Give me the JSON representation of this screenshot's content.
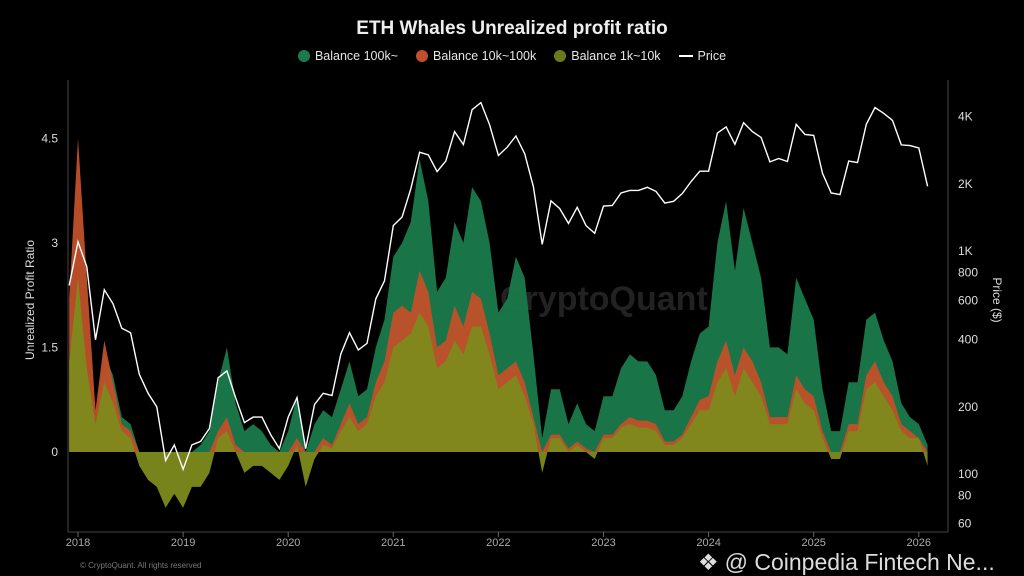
{
  "chart_data": {
    "type": "area",
    "title": "ETH Whales Unrealized profit ratio",
    "ylabel": "Unrealized Profit Ratio",
    "y2label": "Price ($)",
    "y2scale": "log",
    "ylim": [
      -1.12,
      5.34
    ],
    "y2lim": [
      60,
      5800
    ],
    "yticks": [
      "0",
      "1.5",
      "3",
      "4.5"
    ],
    "y2ticks": [
      "60",
      "80",
      "100",
      "200",
      "400",
      "600",
      "800",
      "1K",
      "2K",
      "4K"
    ],
    "xticks": [
      "2018",
      "2019",
      "2020",
      "2021",
      "2022",
      "2023",
      "2024",
      "2025",
      "2026"
    ],
    "legend_position": "top",
    "x_start": "2017-12",
    "x_end": "2026-02",
    "x_step": "month",
    "series": [
      {
        "name": "Balance 100k~",
        "color": "#1a7a4c",
        "values": [
          1.0,
          1.2,
          0.9,
          0.3,
          1.4,
          1.1,
          0.5,
          0.4,
          0,
          0,
          0,
          0,
          0,
          0,
          0,
          0.1,
          0.3,
          1.0,
          1.5,
          0.7,
          0.3,
          0.4,
          0.3,
          0.1,
          0,
          0.3,
          0.8,
          0,
          0.4,
          0.6,
          0.5,
          0.9,
          1.3,
          0.8,
          0.9,
          1.5,
          1.9,
          2.8,
          3.0,
          3.3,
          4.2,
          3.6,
          2.3,
          2.5,
          3.3,
          3.0,
          3.8,
          3.6,
          3.0,
          2.0,
          2.2,
          2.8,
          2.5,
          1.4,
          0.2,
          0.9,
          0.9,
          0.4,
          0.7,
          0.4,
          0.3,
          0.8,
          0.8,
          1.2,
          1.4,
          1.3,
          1.3,
          1.1,
          0.6,
          0.6,
          0.8,
          1.3,
          1.7,
          1.8,
          3.0,
          3.6,
          2.6,
          3.5,
          3.0,
          2.5,
          1.5,
          1.5,
          1.4,
          2.5,
          2.2,
          1.9,
          0.9,
          0.3,
          0.3,
          1.0,
          1.0,
          1.9,
          2.0,
          1.6,
          1.3,
          0.7,
          0.5,
          0.4,
          0.1
        ]
      },
      {
        "name": "Balance 10k~100k",
        "color": "#c0502a",
        "values": [
          2.2,
          4.5,
          2.5,
          0.6,
          1.6,
          1.0,
          0.4,
          0.3,
          0,
          0,
          0,
          0,
          0,
          0,
          0,
          0,
          0,
          0.3,
          0.5,
          0.1,
          0,
          0,
          0,
          0,
          0,
          0,
          0.2,
          0,
          0,
          0.2,
          0.1,
          0.4,
          0.7,
          0.4,
          0.5,
          1.0,
          1.3,
          2.0,
          2.1,
          2.0,
          2.6,
          2.3,
          1.5,
          1.6,
          2.1,
          1.8,
          2.3,
          2.2,
          1.7,
          1.1,
          1.2,
          1.3,
          1.0,
          0.5,
          0,
          0.25,
          0.25,
          0.05,
          0.15,
          0.05,
          0,
          0.25,
          0.25,
          0.4,
          0.5,
          0.45,
          0.45,
          0.4,
          0.15,
          0.15,
          0.25,
          0.5,
          0.75,
          0.8,
          1.3,
          1.6,
          1.1,
          1.5,
          1.3,
          1.0,
          0.5,
          0.5,
          0.5,
          1.1,
          0.9,
          0.8,
          0.3,
          0,
          0,
          0.4,
          0.4,
          1.1,
          1.3,
          1.0,
          0.8,
          0.4,
          0.3,
          0.2,
          0
        ]
      },
      {
        "name": "Balance 1k~10k",
        "color": "#7d8a1c",
        "values": [
          1.3,
          2.5,
          1.2,
          0.4,
          1.0,
          0.7,
          0.3,
          0.2,
          -0.2,
          -0.4,
          -0.5,
          -0.8,
          -0.6,
          -0.8,
          -0.5,
          -0.5,
          -0.3,
          0.2,
          0.3,
          0.0,
          -0.3,
          -0.2,
          -0.2,
          -0.3,
          -0.4,
          -0.2,
          0.1,
          -0.5,
          -0.1,
          0.1,
          0.05,
          0.3,
          0.5,
          0.3,
          0.4,
          0.8,
          1.0,
          1.5,
          1.6,
          1.7,
          2.0,
          1.8,
          1.2,
          1.3,
          1.6,
          1.4,
          1.8,
          1.8,
          1.4,
          0.9,
          1.0,
          1.1,
          0.8,
          0.4,
          -0.3,
          0.2,
          0.2,
          0.0,
          0.1,
          0.0,
          -0.1,
          0.2,
          0.2,
          0.35,
          0.4,
          0.35,
          0.35,
          0.3,
          0.1,
          0.1,
          0.2,
          0.4,
          0.6,
          0.6,
          1.0,
          1.2,
          0.8,
          1.2,
          1.0,
          0.8,
          0.4,
          0.4,
          0.4,
          0.9,
          0.7,
          0.6,
          0.2,
          -0.1,
          -0.1,
          0.3,
          0.3,
          0.9,
          1.0,
          0.8,
          0.6,
          0.3,
          0.2,
          0.2,
          -0.2
        ]
      },
      {
        "name": "Price",
        "color": "#ffffff",
        "axis": "right",
        "values": [
          700,
          1100,
          850,
          400,
          670,
          580,
          450,
          430,
          280,
          230,
          200,
          115,
          135,
          105,
          135,
          140,
          160,
          270,
          290,
          220,
          170,
          180,
          180,
          150,
          130,
          180,
          220,
          130,
          205,
          230,
          225,
          345,
          430,
          360,
          385,
          610,
          735,
          1300,
          1420,
          1900,
          2770,
          2700,
          2270,
          2530,
          3430,
          3000,
          4300,
          4630,
          3680,
          2680,
          2920,
          3280,
          2730,
          1940,
          1070,
          1680,
          1550,
          1330,
          1570,
          1300,
          1200,
          1590,
          1600,
          1820,
          1870,
          1870,
          1930,
          1850,
          1640,
          1670,
          1810,
          2050,
          2280,
          2280,
          3380,
          3600,
          3010,
          3760,
          3430,
          3230,
          2510,
          2600,
          2520,
          3700,
          3330,
          3300,
          2230,
          1820,
          1790,
          2530,
          2490,
          3700,
          4400,
          4140,
          3850,
          2990,
          2970,
          2900,
          1950
        ]
      }
    ]
  },
  "watermark": "CryptoQuant",
  "footer": {
    "text": "@ Coinpedia Fintech Ne...",
    "copyright": "© CryptoQuant. All rights reserved"
  }
}
